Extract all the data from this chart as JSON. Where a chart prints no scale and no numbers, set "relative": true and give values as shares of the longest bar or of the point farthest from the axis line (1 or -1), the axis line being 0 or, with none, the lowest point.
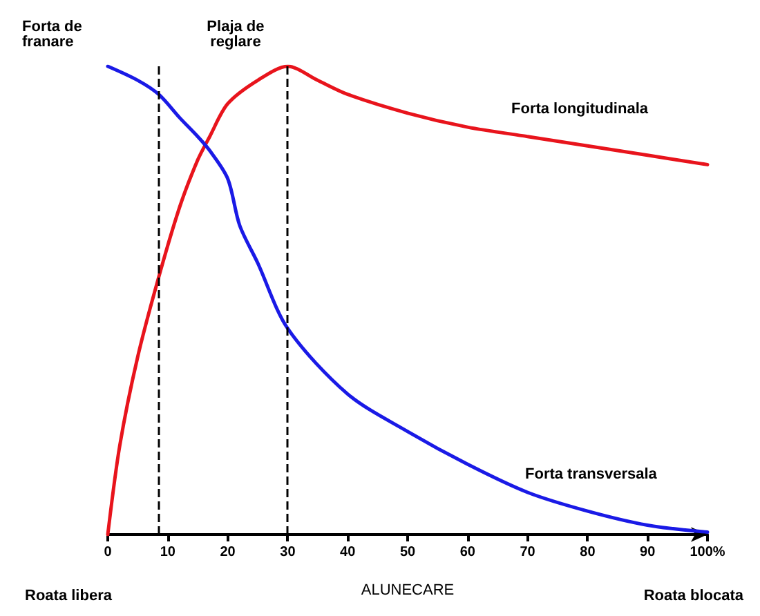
{
  "chart_data": {
    "type": "line",
    "relative": true,
    "ylabel": "Forta de\nfranare",
    "xlabel": "ALUNECARE",
    "xlim": [
      0,
      100
    ],
    "xticks": [
      0,
      10,
      20,
      30,
      40,
      50,
      60,
      70,
      80,
      90,
      {
        "value": 100,
        "label": "100%"
      }
    ],
    "annotations": [
      "Plaja de\nreglare",
      "Roata libera",
      "Roata blocata"
    ],
    "ref_lines": [
      {
        "axis": "x",
        "value": 8.5,
        "color": "#000000",
        "line_style": "dashed"
      },
      {
        "axis": "x",
        "value": 30,
        "color": "#000000",
        "line_style": "dashed"
      }
    ],
    "grid": false,
    "marker": "none",
    "line_style": "solid",
    "series": [
      {
        "name": "Forta longitudinala",
        "color": "#e8141c",
        "x": [
          0,
          2,
          5,
          8.5,
          12,
          15,
          17,
          20,
          25,
          30,
          35,
          40,
          50,
          60,
          70,
          80,
          90,
          100
        ],
        "values": [
          0,
          0.19,
          0.38,
          0.55,
          0.7,
          0.8,
          0.85,
          0.92,
          0.97,
          1,
          0.97,
          0.94,
          0.9,
          0.87,
          0.85,
          0.83,
          0.81,
          0.79
        ]
      },
      {
        "name": "Forta transversala",
        "color": "#1a1ae6",
        "x": [
          0,
          5,
          8.5,
          12,
          15,
          17,
          20,
          22,
          25,
          30,
          40,
          50,
          60,
          70,
          80,
          90,
          100
        ],
        "values": [
          1,
          0.97,
          0.94,
          0.89,
          0.85,
          0.82,
          0.76,
          0.66,
          0.58,
          0.44,
          0.3,
          0.22,
          0.15,
          0.09,
          0.05,
          0.02,
          0.005
        ]
      }
    ]
  }
}
